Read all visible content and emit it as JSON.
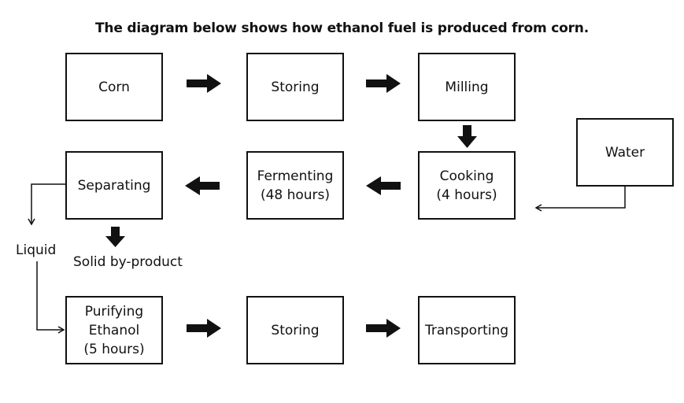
{
  "title": "The diagram below shows how ethanol fuel is produced from corn.",
  "steps": {
    "corn": "Corn",
    "storing_1": "Storing",
    "milling": "Milling",
    "water": "Water",
    "cooking": [
      "Cooking",
      "(4 hours)"
    ],
    "fermenting": [
      "Fermenting",
      "(48 hours)"
    ],
    "separating": "Separating",
    "purifying": [
      "Purifying",
      "Ethanol",
      "(5 hours)"
    ],
    "storing_2": "Storing",
    "transporting": "Transporting"
  },
  "labels": {
    "liquid": "Liquid",
    "solid": "Solid by-product"
  }
}
